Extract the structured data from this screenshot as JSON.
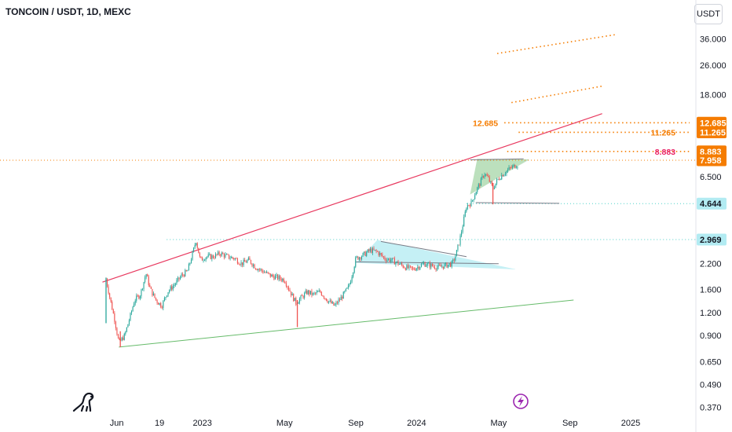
{
  "header": {
    "title": "TONCOIN / USDT, 1D, MEXC",
    "currency_button": "USDT"
  },
  "colors": {
    "up": "#26a69a",
    "down": "#ef5350",
    "resistance": "#e8395f",
    "support": "#66bb6a",
    "orange": "#f57c00",
    "cyan_tag": "#b2ebf2",
    "teal_line": "#4dd0c8",
    "pink_text": "#e91e63"
  },
  "chart_data": {
    "type": "candlestick",
    "symbol": "TONCOIN / USDT",
    "interval": "1D",
    "exchange": "MEXC",
    "y_scale": "log",
    "ylim": [
      0.33,
      48
    ],
    "y_ticks": [
      36.0,
      26.0,
      18.0,
      12.685,
      11.265,
      8.883,
      7.958,
      6.5,
      4.644,
      2.969,
      2.2,
      1.6,
      1.2,
      0.9,
      0.65,
      0.49,
      0.37
    ],
    "y_tick_labels": [
      "36.000",
      "26.000",
      "18.000",
      "12.685",
      "11.265",
      "8.883",
      "7.958",
      "6.500",
      "4.644",
      "2.969",
      "2.200",
      "1.600",
      "1.200",
      "0.900",
      "0.650",
      "0.490",
      "0.370"
    ],
    "x_ticks": [
      {
        "label": "Jun",
        "t": 0.75
      },
      {
        "label": "19",
        "t": 1.35
      },
      {
        "label": "2023",
        "t": 1.95
      },
      {
        "label": "May",
        "t": 3.1
      },
      {
        "label": "Sep",
        "t": 4.1
      },
      {
        "label": "2024",
        "t": 4.95
      },
      {
        "label": "May",
        "t": 6.1
      },
      {
        "label": "Sep",
        "t": 7.1
      },
      {
        "label": "2025",
        "t": 7.95
      }
    ],
    "price_path": [
      [
        0.6,
        1.82
      ],
      [
        0.66,
        1.4
      ],
      [
        0.72,
        1.1
      ],
      [
        0.78,
        0.82
      ],
      [
        0.86,
        0.9
      ],
      [
        0.94,
        1.15
      ],
      [
        1.0,
        1.4
      ],
      [
        1.08,
        1.5
      ],
      [
        1.16,
        1.95
      ],
      [
        1.22,
        1.6
      ],
      [
        1.3,
        1.4
      ],
      [
        1.38,
        1.3
      ],
      [
        1.46,
        1.55
      ],
      [
        1.56,
        1.7
      ],
      [
        1.66,
        1.9
      ],
      [
        1.74,
        2.0
      ],
      [
        1.82,
        2.55
      ],
      [
        1.86,
        2.95
      ],
      [
        1.92,
        2.3
      ],
      [
        2.0,
        2.4
      ],
      [
        2.1,
        2.4
      ],
      [
        2.2,
        2.5
      ],
      [
        2.3,
        2.4
      ],
      [
        2.4,
        2.35
      ],
      [
        2.5,
        2.2
      ],
      [
        2.6,
        2.3
      ],
      [
        2.7,
        2.1
      ],
      [
        2.8,
        2.0
      ],
      [
        2.9,
        1.9
      ],
      [
        3.0,
        1.85
      ],
      [
        3.1,
        1.8
      ],
      [
        3.2,
        1.5
      ],
      [
        3.26,
        1.35
      ],
      [
        3.34,
        1.45
      ],
      [
        3.42,
        1.55
      ],
      [
        3.5,
        1.5
      ],
      [
        3.6,
        1.55
      ],
      [
        3.7,
        1.4
      ],
      [
        3.8,
        1.3
      ],
      [
        3.9,
        1.45
      ],
      [
        4.0,
        1.65
      ],
      [
        4.05,
        1.95
      ],
      [
        4.1,
        2.35
      ],
      [
        4.2,
        2.45
      ],
      [
        4.3,
        2.6
      ],
      [
        4.4,
        2.55
      ],
      [
        4.5,
        2.35
      ],
      [
        4.6,
        2.3
      ],
      [
        4.7,
        2.2
      ],
      [
        4.8,
        2.1
      ],
      [
        4.9,
        2.05
      ],
      [
        5.0,
        2.15
      ],
      [
        5.05,
        2.2
      ],
      [
        5.15,
        2.15
      ],
      [
        5.25,
        2.1
      ],
      [
        5.35,
        2.15
      ],
      [
        5.45,
        2.2
      ],
      [
        5.5,
        2.45
      ],
      [
        5.55,
        2.9
      ],
      [
        5.6,
        3.6
      ],
      [
        5.65,
        4.5
      ],
      [
        5.72,
        4.7
      ],
      [
        5.78,
        5.4
      ],
      [
        5.84,
        6.0
      ],
      [
        5.9,
        6.8
      ],
      [
        5.96,
        6.3
      ],
      [
        6.02,
        5.6
      ],
      [
        6.08,
        6.2
      ],
      [
        6.14,
        6.6
      ],
      [
        6.2,
        6.9
      ],
      [
        6.26,
        7.2
      ],
      [
        6.32,
        7.4
      ],
      [
        6.38,
        7.6
      ]
    ],
    "spikes": [
      [
        0.6,
        1.05,
        1.85
      ],
      [
        3.28,
        1.0,
        1.4
      ],
      [
        0.8,
        0.78,
        0.95
      ],
      [
        6.02,
        4.6,
        6.0
      ]
    ],
    "rising_channel_top": [
      [
        0.55,
        1.75
      ],
      [
        7.55,
        14.2
      ]
    ],
    "rising_channel_bottom": [
      [
        0.78,
        0.78
      ],
      [
        7.15,
        1.4
      ]
    ],
    "horizontal_levels": [
      {
        "value": 7.958,
        "label": "7.958",
        "style": "orange-dotted-full"
      },
      {
        "value": 4.644,
        "label": "4.644",
        "style": "teal-dotted",
        "x_start": 5.65
      },
      {
        "value": 2.969,
        "label": "2.969",
        "style": "teal-dotted",
        "x_start": 1.45
      }
    ],
    "target_levels": [
      {
        "value": 12.685,
        "label": "12.685",
        "x_start": 6.18,
        "label_position": "left"
      },
      {
        "value": 11.265,
        "label": "11.265",
        "x_start": 6.38,
        "label_position": "right"
      },
      {
        "value": 8.883,
        "label": "8.883",
        "x_start": 6.22,
        "label_position": "right"
      }
    ],
    "dotted_trend_lines": [
      [
        [
          6.08,
          30.0
        ],
        [
          7.75,
          38.0
        ]
      ],
      [
        [
          6.28,
          16.3
        ],
        [
          7.55,
          20.0
        ]
      ]
    ],
    "patterns": [
      {
        "type": "triangle",
        "fill": "#b2ebf2",
        "points": [
          [
            4.1,
            2.22
          ],
          [
            4.4,
            2.95
          ],
          [
            6.35,
            2.05
          ]
        ]
      },
      {
        "type": "green-triangle",
        "fill": "#a5d6a7",
        "points": [
          [
            5.7,
            5.2
          ],
          [
            5.8,
            8.1
          ],
          [
            6.53,
            8.05
          ]
        ]
      },
      {
        "type": "grey-triangle",
        "fill": "#e0f2f1",
        "points": [
          [
            6.0,
            6.2
          ],
          [
            6.55,
            8.05
          ],
          [
            6.5,
            7.9
          ]
        ]
      }
    ],
    "pattern_lines": [
      [
        [
          4.1,
          2.25
        ],
        [
          6.1,
          2.2
        ]
      ],
      [
        [
          4.45,
          2.9
        ],
        [
          5.65,
          2.4
        ]
      ],
      [
        [
          5.7,
          8.0
        ],
        [
          6.45,
          8.1
        ]
      ],
      [
        [
          5.78,
          4.7
        ],
        [
          6.95,
          4.66
        ]
      ]
    ]
  }
}
